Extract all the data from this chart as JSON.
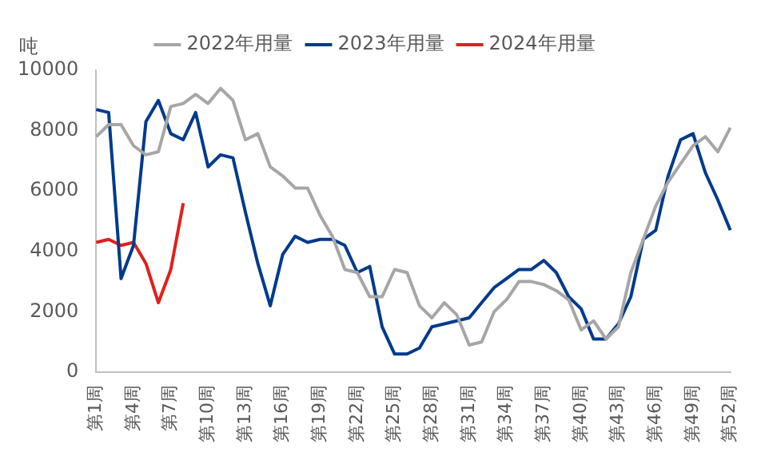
{
  "chart_data": {
    "type": "line",
    "ylabel": "吨",
    "categories": [
      "第1周",
      null,
      null,
      "第4周",
      null,
      null,
      "第7周",
      null,
      null,
      "第10周",
      null,
      null,
      "第13周",
      null,
      null,
      "第16周",
      null,
      null,
      "第19周",
      null,
      null,
      "第22周",
      null,
      null,
      "第25周",
      null,
      null,
      "第28周",
      null,
      null,
      "第31周",
      null,
      null,
      "第34周",
      null,
      null,
      "第37周",
      null,
      null,
      "第40周",
      null,
      null,
      "第43周",
      null,
      null,
      "第46周",
      null,
      null,
      "第49周",
      null,
      null,
      "第52周"
    ],
    "series": [
      {
        "name": "2022年用量",
        "color": "#a6a6a6",
        "values": [
          7800,
          8200,
          8200,
          7500,
          7200,
          7300,
          8800,
          8900,
          9200,
          8900,
          9400,
          9000,
          7700,
          7900,
          6800,
          6500,
          6100,
          6100,
          5200,
          4500,
          3400,
          3300,
          2500,
          2500,
          3400,
          3300,
          2200,
          1800,
          2300,
          1900,
          900,
          1000,
          2000,
          2400,
          3000,
          3000,
          2900,
          2700,
          2400,
          1400,
          1700,
          1100,
          1500,
          3300,
          4400,
          5500,
          6300,
          6900,
          7500,
          7800,
          7300,
          8100
        ]
      },
      {
        "name": "2023年用量",
        "color": "#003a8c",
        "values": [
          8700,
          8600,
          3100,
          4200,
          8300,
          9000,
          7900,
          7700,
          8600,
          6800,
          7200,
          7100,
          5300,
          3600,
          2200,
          3900,
          4500,
          4300,
          4400,
          4400,
          4200,
          3300,
          3500,
          1500,
          600,
          600,
          800,
          1500,
          1600,
          1700,
          1800,
          2300,
          2800,
          3100,
          3400,
          3400,
          3700,
          3300,
          2500,
          2100,
          1100,
          1100,
          1600,
          2500,
          4400,
          4700,
          6500,
          7700,
          7900,
          6600,
          5700,
          4700
        ]
      },
      {
        "name": "2024年用量",
        "color": "#e0201c",
        "values": [
          4300,
          4400,
          4200,
          4300,
          3600,
          2300,
          3400,
          5600,
          null,
          null,
          null,
          null,
          null,
          null,
          null,
          null,
          null,
          null,
          null,
          null,
          null,
          null,
          null,
          null,
          null,
          null,
          null,
          null,
          null,
          null,
          null,
          null,
          null,
          null,
          null,
          null,
          null,
          null,
          null,
          null,
          null,
          null,
          null,
          null,
          null,
          null,
          null,
          null,
          null,
          null,
          null,
          null
        ]
      }
    ],
    "ylim": [
      0,
      10000
    ],
    "yticks": [
      0,
      2000,
      4000,
      6000,
      8000,
      10000
    ],
    "grid": false,
    "legend": "top",
    "marker": "none",
    "line_style": "solid"
  }
}
